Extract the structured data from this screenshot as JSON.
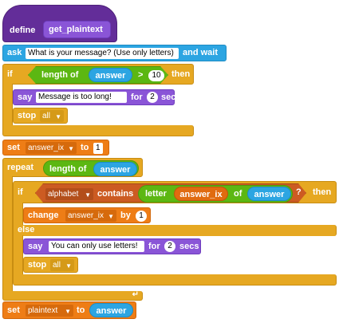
{
  "define_block": {
    "keyword": "define",
    "name": "get_plaintext"
  },
  "ask_block": {
    "keyword": "ask",
    "prompt": "What is your message? (Use only letters)",
    "suffix": "and wait"
  },
  "if1": {
    "keyword": "if",
    "then": "then",
    "length_label": "length of",
    "answer": "answer",
    "operator": ">",
    "limit": "10",
    "say": {
      "keyword": "say",
      "text": "Message is too long!",
      "for": "for",
      "secs_value": "2",
      "secs": "secs"
    },
    "stop": {
      "keyword": "stop",
      "option": "all"
    }
  },
  "set_ix": {
    "keyword": "set",
    "variable": "answer_ix",
    "to": "to",
    "value": "1"
  },
  "repeat_block": {
    "keyword": "repeat",
    "length_label": "length of",
    "answer": "answer",
    "loop_icon": "loop-arrow-icon"
  },
  "if2": {
    "keyword": "if",
    "then": "then",
    "else": "else",
    "list": "alphabet",
    "contains": "contains",
    "letter": "letter",
    "index": "answer_ix",
    "of": "of",
    "answer": "answer",
    "question": "?",
    "change": {
      "keyword": "change",
      "variable": "answer_ix",
      "by": "by",
      "value": "1"
    },
    "say": {
      "keyword": "say",
      "text": "You can only use letters!",
      "for": "for",
      "secs_value": "2",
      "secs": "secs"
    },
    "stop": {
      "keyword": "stop",
      "option": "all"
    }
  },
  "set_plain": {
    "keyword": "set",
    "variable": "plaintext",
    "to": "to",
    "answer": "answer"
  }
}
